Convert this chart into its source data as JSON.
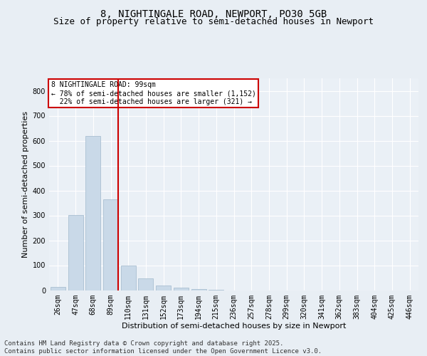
{
  "title1": "8, NIGHTINGALE ROAD, NEWPORT, PO30 5GB",
  "title2": "Size of property relative to semi-detached houses in Newport",
  "xlabel": "Distribution of semi-detached houses by size in Newport",
  "ylabel": "Number of semi-detached properties",
  "categories": [
    "26sqm",
    "47sqm",
    "68sqm",
    "89sqm",
    "110sqm",
    "131sqm",
    "152sqm",
    "173sqm",
    "194sqm",
    "215sqm",
    "236sqm",
    "257sqm",
    "278sqm",
    "299sqm",
    "320sqm",
    "341sqm",
    "362sqm",
    "383sqm",
    "404sqm",
    "425sqm",
    "446sqm"
  ],
  "values": [
    14,
    302,
    620,
    365,
    100,
    48,
    20,
    10,
    5,
    1,
    0,
    0,
    0,
    0,
    0,
    0,
    0,
    0,
    0,
    0,
    0
  ],
  "bar_color": "#c9d9e8",
  "bar_edge_color": "#a0b8cc",
  "vline_color": "#cc0000",
  "vline_bin": 3,
  "annotation_line1": "8 NIGHTINGALE ROAD: 99sqm",
  "annotation_line2": "← 78% of semi-detached houses are smaller (1,152)",
  "annotation_line3": "  22% of semi-detached houses are larger (321) →",
  "annotation_box_color": "#ffffff",
  "annotation_box_edge_color": "#cc0000",
  "ylim": [
    0,
    850
  ],
  "yticks": [
    0,
    100,
    200,
    300,
    400,
    500,
    600,
    700,
    800
  ],
  "background_color": "#e8eef4",
  "plot_background_color": "#eaf0f6",
  "grid_color": "#ffffff",
  "title1_fontsize": 10,
  "title2_fontsize": 9,
  "axis_label_fontsize": 8,
  "tick_fontsize": 7,
  "footer_text": "Contains HM Land Registry data © Crown copyright and database right 2025.\nContains public sector information licensed under the Open Government Licence v3.0.",
  "footer_fontsize": 6.5
}
